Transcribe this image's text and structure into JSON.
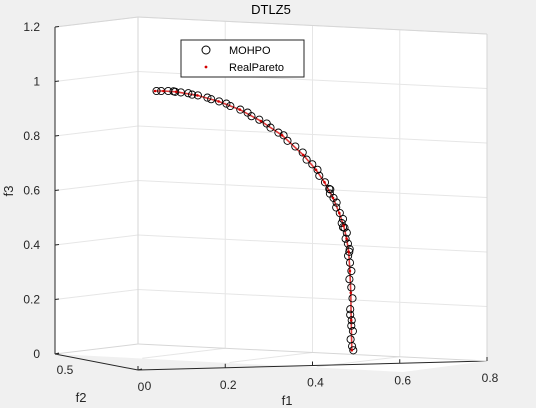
{
  "figure": {
    "background": "#f0f0f0"
  },
  "chart_data": {
    "type": "scatter3d",
    "title": "DTLZ5",
    "xlabel": "f1",
    "ylabel": "f2",
    "zlabel": "f3",
    "zlim": [
      0,
      1.2
    ],
    "xlim": [
      0,
      0.8
    ],
    "ylim": [
      0,
      0.5
    ],
    "z_ticks": [
      {
        "value": 0,
        "label": "0"
      },
      {
        "value": 0.2,
        "label": "0.2"
      },
      {
        "value": 0.4,
        "label": "0.4"
      },
      {
        "value": 0.6,
        "label": "0.6"
      },
      {
        "value": 0.8,
        "label": "0.8"
      },
      {
        "value": 1.0,
        "label": "1"
      },
      {
        "value": 1.2,
        "label": "1.2"
      }
    ],
    "x_ticks": [
      {
        "value": 0,
        "label": "0"
      },
      {
        "value": 0.2,
        "label": "0.2"
      },
      {
        "value": 0.4,
        "label": "0.4"
      },
      {
        "value": 0.6,
        "label": "0.6"
      },
      {
        "value": 0.8,
        "label": "0.8"
      }
    ],
    "y_ticks": [
      {
        "value": 0,
        "label": "0"
      },
      {
        "value": 0.5,
        "label": "0.5"
      }
    ],
    "grid": true,
    "legend": {
      "placement": "top-center",
      "entries": [
        {
          "name": "MOHPO",
          "marker": "open-circle",
          "color": "#000000"
        },
        {
          "name": "RealPareto",
          "marker": "dot",
          "color": "#d40000"
        }
      ]
    },
    "projected_front": {
      "f1_at_f3_0": 0.4625,
      "f3_at_f1_0": 0.958,
      "f2_range": [
        0,
        0.05
      ]
    },
    "series": [
      {
        "name": "MOHPO",
        "points_f1_f3": [
          [
            0.0,
            0.958
          ],
          [
            0.017,
            0.958
          ],
          [
            0.03,
            0.958
          ],
          [
            0.04,
            0.957
          ],
          [
            0.05,
            0.955
          ],
          [
            0.06,
            0.953
          ],
          [
            0.075,
            0.95
          ],
          [
            0.09,
            0.945
          ],
          [
            0.1,
            0.942
          ],
          [
            0.12,
            0.934
          ],
          [
            0.135,
            0.928
          ],
          [
            0.15,
            0.92
          ],
          [
            0.165,
            0.912
          ],
          [
            0.18,
            0.903
          ],
          [
            0.2,
            0.89
          ],
          [
            0.215,
            0.879
          ],
          [
            0.23,
            0.866
          ],
          [
            0.245,
            0.853
          ],
          [
            0.26,
            0.839
          ],
          [
            0.275,
            0.824
          ],
          [
            0.29,
            0.806
          ],
          [
            0.3,
            0.796
          ],
          [
            0.315,
            0.776
          ],
          [
            0.33,
            0.755
          ],
          [
            0.345,
            0.733
          ],
          [
            0.36,
            0.707
          ],
          [
            0.37,
            0.69
          ],
          [
            0.38,
            0.67
          ],
          [
            0.39,
            0.648
          ],
          [
            0.4,
            0.624
          ],
          [
            0.41,
            0.598
          ],
          [
            0.415,
            0.583
          ],
          [
            0.42,
            0.567
          ],
          [
            0.425,
            0.55
          ],
          [
            0.43,
            0.532
          ],
          [
            0.435,
            0.512
          ],
          [
            0.44,
            0.49
          ],
          [
            0.443,
            0.475
          ],
          [
            0.446,
            0.458
          ],
          [
            0.449,
            0.44
          ],
          [
            0.452,
            0.418
          ],
          [
            0.454,
            0.4
          ],
          [
            0.456,
            0.38
          ],
          [
            0.458,
            0.355
          ],
          [
            0.459,
            0.33
          ],
          [
            0.46,
            0.3
          ],
          [
            0.461,
            0.27
          ],
          [
            0.462,
            0.24
          ],
          [
            0.4625,
            0.2
          ],
          [
            0.463,
            0.16
          ],
          [
            0.463,
            0.12
          ],
          [
            0.4635,
            0.08
          ],
          [
            0.464,
            0.05
          ],
          [
            0.464,
            0.025
          ],
          [
            0.4645,
            0.01
          ],
          [
            0.463,
            0.14
          ],
          [
            0.462,
            0.1
          ],
          [
            0.455,
            0.37
          ],
          [
            0.446,
            0.46
          ],
          [
            0.41,
            0.6
          ]
        ]
      },
      {
        "name": "RealPareto",
        "points_f1_f3": [
          [
            0.0,
            0.958
          ],
          [
            0.02,
            0.958
          ],
          [
            0.05,
            0.955
          ],
          [
            0.1,
            0.942
          ],
          [
            0.15,
            0.92
          ],
          [
            0.2,
            0.89
          ],
          [
            0.25,
            0.848
          ],
          [
            0.3,
            0.796
          ],
          [
            0.35,
            0.724
          ],
          [
            0.38,
            0.67
          ],
          [
            0.4,
            0.624
          ],
          [
            0.42,
            0.567
          ],
          [
            0.435,
            0.512
          ],
          [
            0.445,
            0.466
          ],
          [
            0.452,
            0.418
          ],
          [
            0.457,
            0.37
          ],
          [
            0.46,
            0.3
          ],
          [
            0.462,
            0.22
          ],
          [
            0.463,
            0.12
          ],
          [
            0.4645,
            0.01
          ]
        ]
      }
    ]
  }
}
